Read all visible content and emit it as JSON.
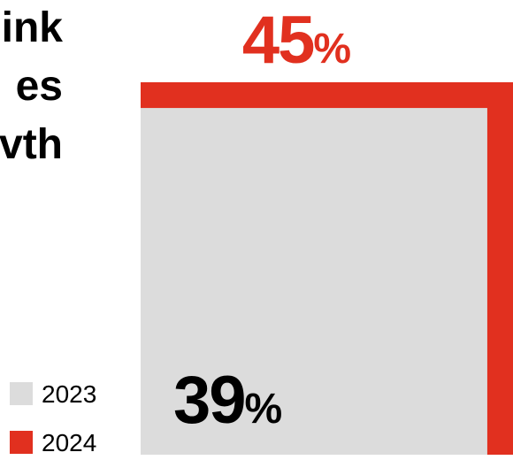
{
  "title_lines": [
    "ink",
    "es",
    "vth"
  ],
  "legend": [
    {
      "label": "2023",
      "color": "#dcdcdc"
    },
    {
      "label": "2024",
      "color": "#e1301f"
    }
  ],
  "chart_data": {
    "type": "area",
    "title": "",
    "series": [
      {
        "name": "2023",
        "value": 39,
        "unit": "%",
        "color": "#dcdcdc",
        "label_color": "#000000"
      },
      {
        "name": "2024",
        "value": 45,
        "unit": "%",
        "color": "#e1301f",
        "label_color": "#e1301f"
      }
    ]
  }
}
